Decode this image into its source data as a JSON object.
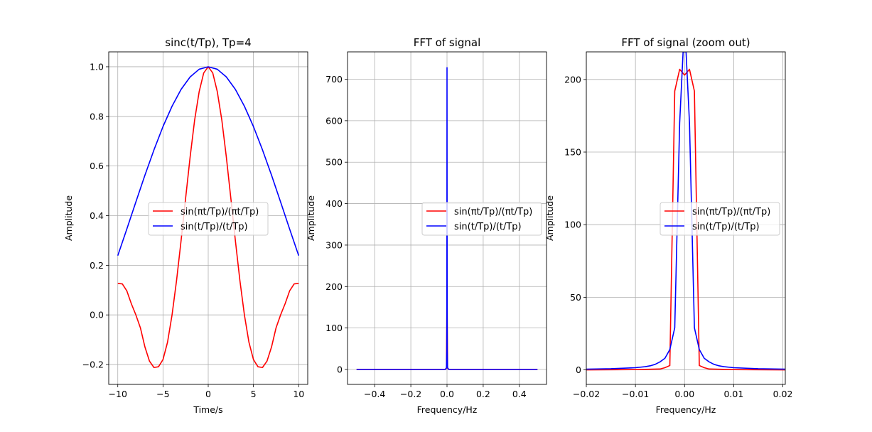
{
  "chart_data": [
    {
      "type": "line",
      "title": "sinc(t/Tp), Tp=4",
      "xlabel": "Time/s",
      "ylabel": "Amplitude",
      "xlim": [
        -11,
        11
      ],
      "ylim": [
        -0.28,
        1.06
      ],
      "xticks": [
        -10,
        -5,
        0,
        5,
        10
      ],
      "xtick_labels": [
        "−10",
        "−5",
        "0",
        "5",
        "10"
      ],
      "yticks": [
        -0.2,
        0.0,
        0.2,
        0.4,
        0.6,
        0.8,
        1.0
      ],
      "ytick_labels": [
        "−0.2",
        "0.0",
        "0.2",
        "0.4",
        "0.6",
        "0.8",
        "1.0"
      ],
      "grid": true,
      "legend_position": "center",
      "series": [
        {
          "name": "sin(πt/Tp)/(πt/Tp)",
          "color": "#ff0000",
          "x": [
            -10,
            -9.5,
            -9,
            -8.5,
            -8,
            -7.5,
            -7,
            -6.5,
            -6,
            -5.5,
            -5,
            -4.5,
            -4,
            -3.5,
            -3,
            -2.5,
            -2,
            -1.5,
            -1,
            -0.5,
            0,
            0.5,
            1,
            1.5,
            2,
            2.5,
            3,
            3.5,
            4,
            4.5,
            5,
            5.5,
            6,
            6.5,
            7,
            7.5,
            8,
            8.5,
            9,
            9.5,
            10
          ],
          "y": [
            0.127,
            0.125,
            0.097,
            0.045,
            0.0,
            -0.052,
            -0.129,
            -0.186,
            -0.212,
            -0.209,
            -0.18,
            -0.11,
            0.0,
            0.139,
            0.3,
            0.47,
            0.637,
            0.786,
            0.9,
            0.975,
            1.0,
            0.975,
            0.9,
            0.786,
            0.637,
            0.47,
            0.3,
            0.139,
            0.0,
            -0.11,
            -0.18,
            -0.209,
            -0.212,
            -0.186,
            -0.129,
            -0.052,
            0.0,
            0.045,
            0.097,
            0.125,
            0.127
          ]
        },
        {
          "name": "sin(t/Tp)/(t/Tp)",
          "color": "#0000ff",
          "x": [
            -10,
            -9,
            -8,
            -7,
            -6,
            -5,
            -4,
            -3,
            -2,
            -1,
            0,
            1,
            2,
            3,
            4,
            5,
            6,
            7,
            8,
            9,
            10
          ],
          "y": [
            0.239,
            0.346,
            0.455,
            0.563,
            0.665,
            0.759,
            0.841,
            0.909,
            0.959,
            0.99,
            1.0,
            0.99,
            0.959,
            0.909,
            0.841,
            0.759,
            0.665,
            0.563,
            0.455,
            0.346,
            0.239
          ]
        }
      ]
    },
    {
      "type": "line",
      "title": "FFT of signal",
      "xlabel": "Frequency/Hz",
      "ylabel": "Amplitude",
      "xlim": [
        -0.55,
        0.55
      ],
      "ylim": [
        -36,
        766
      ],
      "xticks": [
        -0.4,
        -0.2,
        0.0,
        0.2,
        0.4
      ],
      "xtick_labels": [
        "−0.4",
        "−0.2",
        "0.0",
        "0.2",
        "0.4"
      ],
      "yticks": [
        0,
        100,
        200,
        300,
        400,
        500,
        600,
        700
      ],
      "ytick_labels": [
        "0",
        "100",
        "200",
        "300",
        "400",
        "500",
        "600",
        "700"
      ],
      "grid": true,
      "legend_position": "center right",
      "series": [
        {
          "name": "sin(πt/Tp)/(πt/Tp)",
          "color": "#ff0000",
          "x": [
            -0.5,
            -0.01,
            -0.003,
            0.0,
            0.003,
            0.01,
            0.5
          ],
          "y": [
            0,
            0,
            3,
            207,
            3,
            0,
            0
          ]
        },
        {
          "name": "sin(t/Tp)/(t/Tp)",
          "color": "#0000ff",
          "x": [
            -0.5,
            -0.01,
            -0.003,
            -0.001,
            0.0,
            0.001,
            0.003,
            0.01,
            0.5
          ],
          "y": [
            0,
            0,
            4,
            50,
            728,
            50,
            4,
            0,
            0
          ]
        }
      ]
    },
    {
      "type": "line",
      "title": "FFT of signal (zoom out)",
      "xlabel": "Frequency/Hz",
      "ylabel": "Amplitude",
      "xlim": [
        -0.02,
        0.0205
      ],
      "ylim": [
        -10,
        219
      ],
      "xticks": [
        -0.02,
        -0.01,
        0.0,
        0.01,
        0.02
      ],
      "xtick_labels": [
        "−0.02",
        "−0.01",
        "0.00",
        "0.01",
        "0.02"
      ],
      "yticks": [
        0,
        50,
        100,
        150,
        200
      ],
      "ytick_labels": [
        "0",
        "50",
        "100",
        "150",
        "200"
      ],
      "grid": true,
      "legend_position": "center right",
      "series": [
        {
          "name": "sin(πt/Tp)/(πt/Tp)",
          "color": "#ff0000",
          "x": [
            -0.02,
            -0.01,
            -0.005,
            -0.004,
            -0.003,
            -0.002,
            -0.001,
            0.0,
            0.001,
            0.002,
            0.003,
            0.004,
            0.005,
            0.01,
            0.0205
          ],
          "y": [
            0,
            0.2,
            0.6,
            1.5,
            3,
            192,
            207,
            203,
            207,
            192,
            3,
            1.5,
            0.6,
            0.2,
            0
          ]
        },
        {
          "name": "sin(t/Tp)/(t/Tp)",
          "color": "#0000ff",
          "x": [
            -0.02,
            -0.015,
            -0.01,
            -0.008,
            -0.007,
            -0.006,
            -0.005,
            -0.004,
            -0.003,
            -0.002,
            -0.001,
            -0.0003,
            0.0003,
            0.001,
            0.002,
            0.003,
            0.004,
            0.005,
            0.006,
            0.007,
            0.008,
            0.01,
            0.015,
            0.0205
          ],
          "y": [
            0.5,
            0.8,
            1.5,
            2.2,
            2.8,
            3.8,
            5.5,
            8,
            14,
            29,
            170,
            219,
            219,
            170,
            29,
            14,
            8,
            5.5,
            3.8,
            2.8,
            2.2,
            1.5,
            0.8,
            0.5
          ]
        }
      ]
    }
  ]
}
